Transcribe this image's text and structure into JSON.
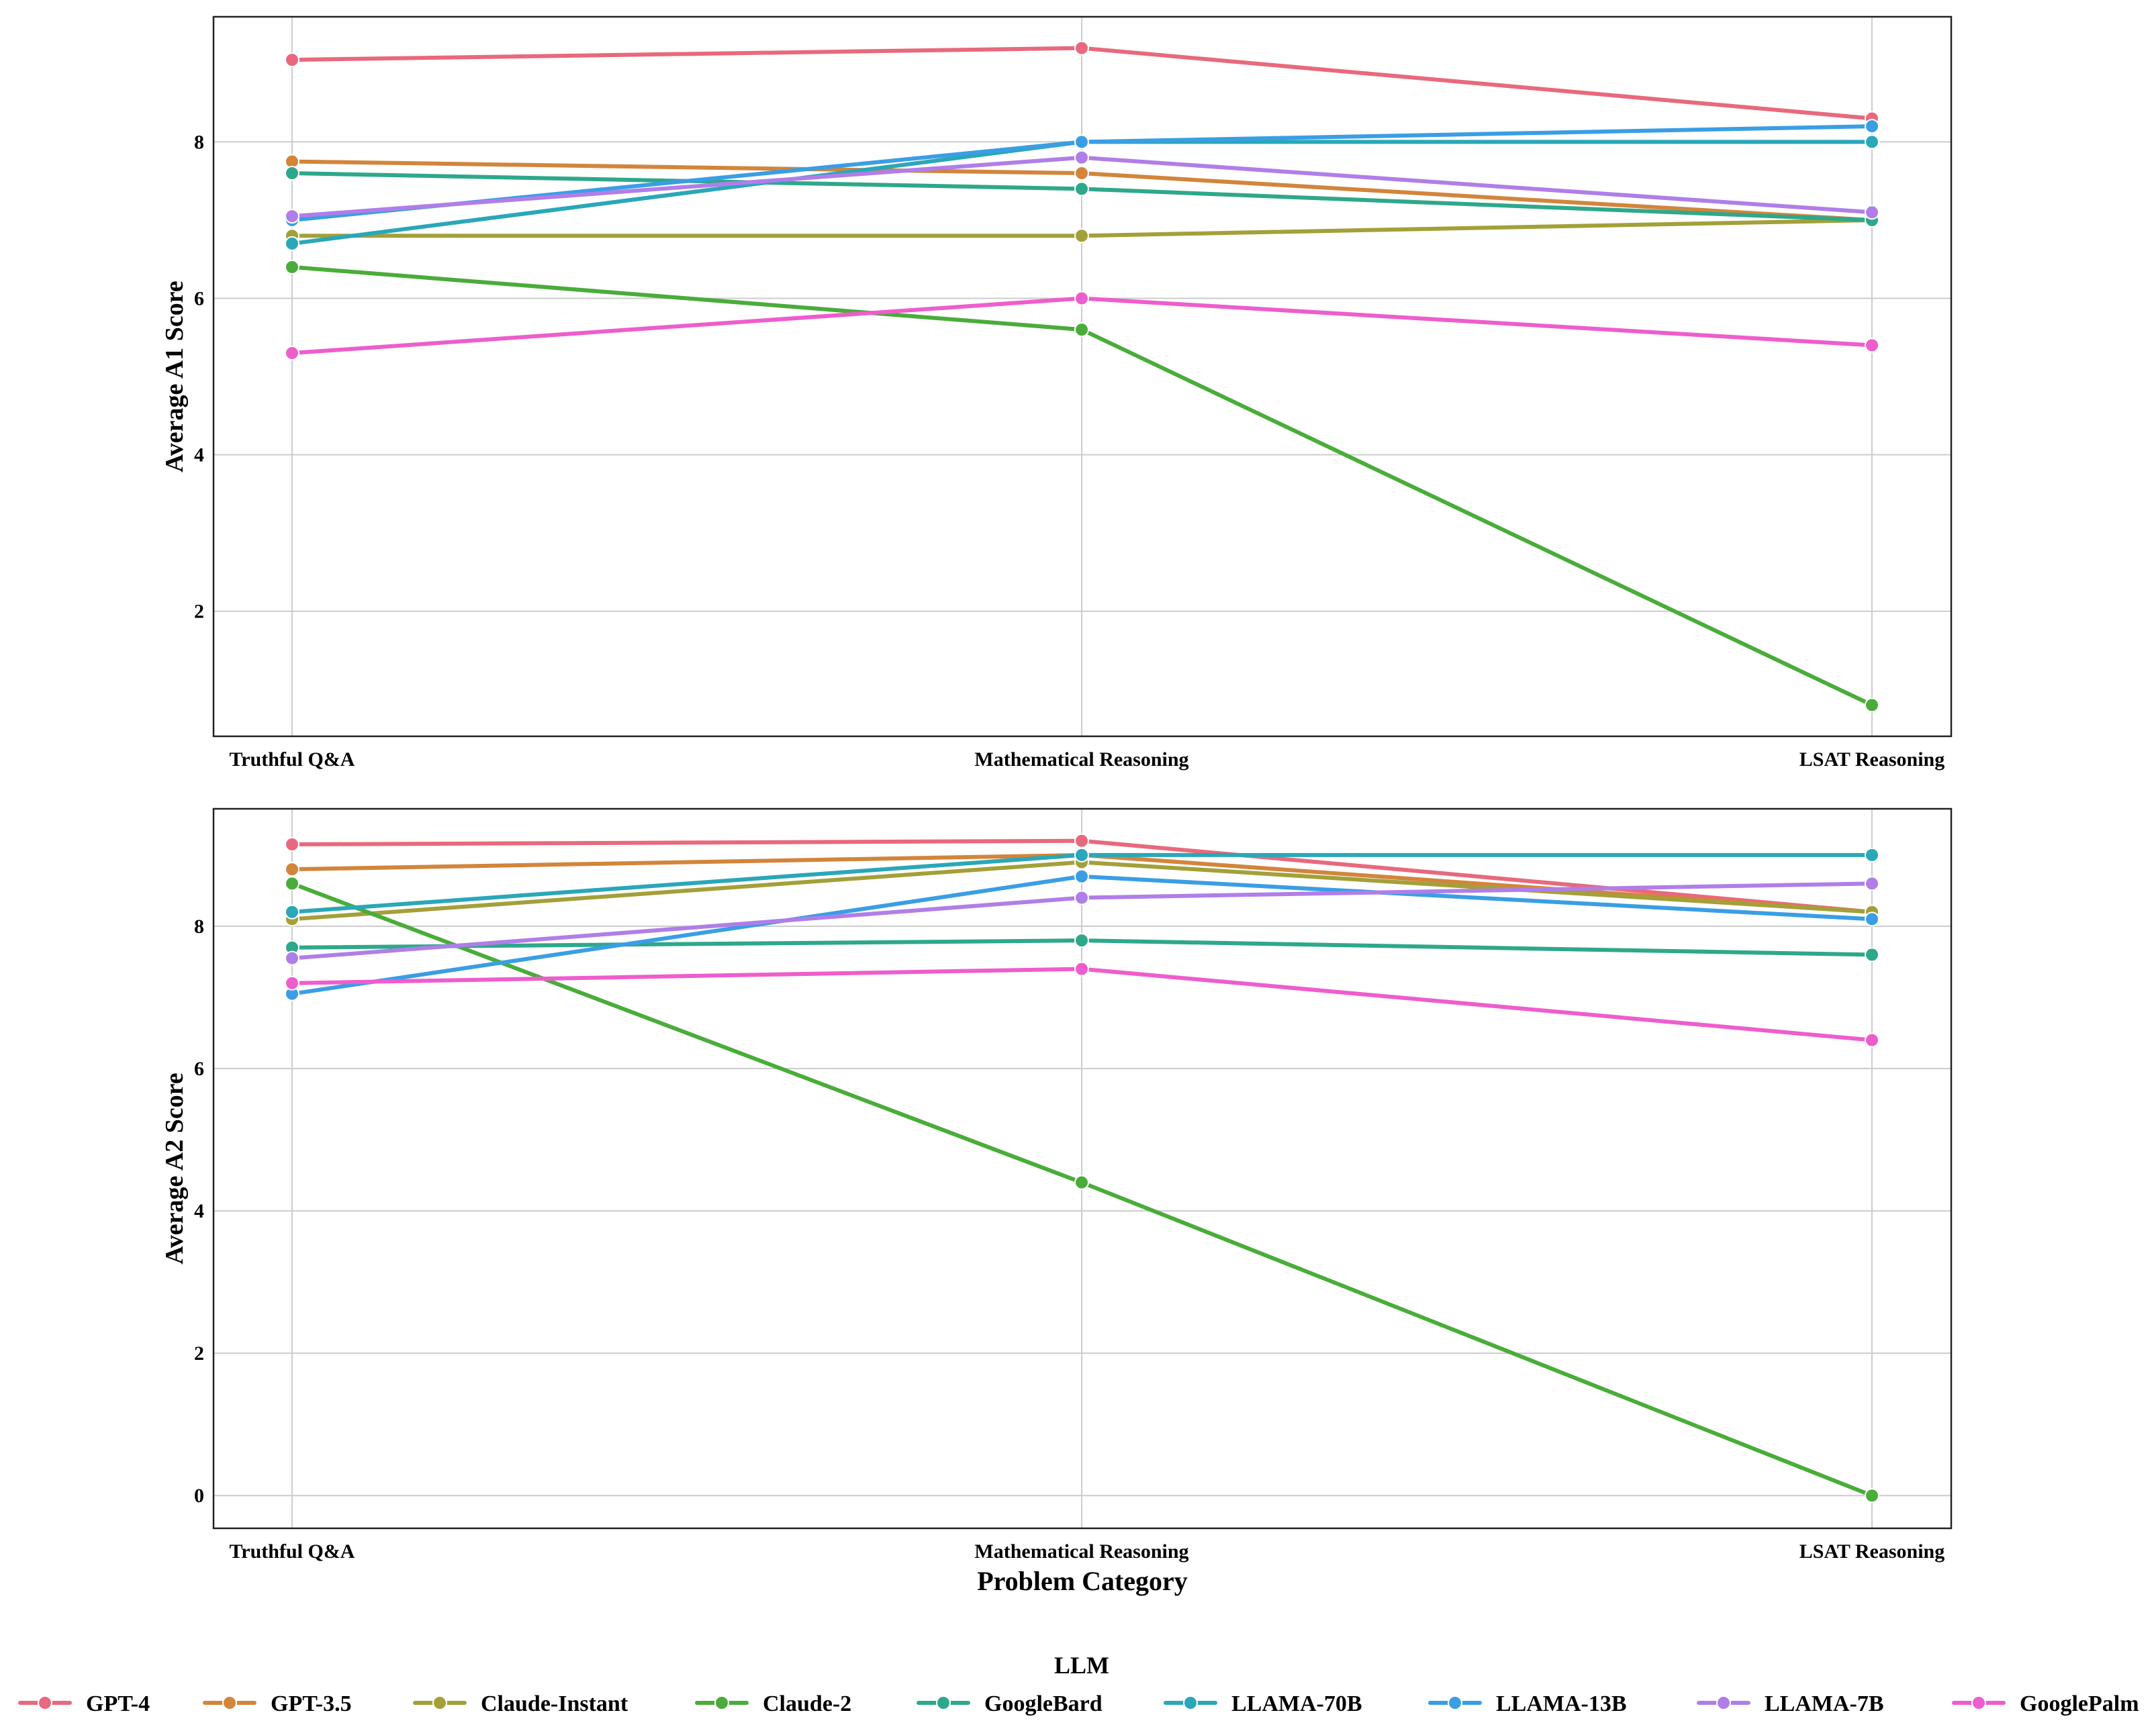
{
  "chart_data": [
    {
      "type": "line",
      "xlabel": "",
      "ylabel": "Average A1 Score",
      "categories": [
        "Truthful Q&A",
        "Mathematical Reasoning",
        "LSAT Reasoning"
      ],
      "ylim": [
        0.4,
        9.6
      ],
      "yticks": [
        2,
        4,
        6,
        8
      ],
      "grid": true,
      "series": [
        {
          "name": "GPT-4",
          "color": "#e8697d",
          "values": [
            9.05,
            9.2,
            8.3
          ]
        },
        {
          "name": "GPT-3.5",
          "color": "#d2853b",
          "values": [
            7.75,
            7.6,
            7.0
          ]
        },
        {
          "name": "Claude-Instant",
          "color": "#a3a03a",
          "values": [
            6.8,
            6.8,
            7.0
          ]
        },
        {
          "name": "Claude-2",
          "color": "#4aac3a",
          "values": [
            6.4,
            5.6,
            0.8
          ]
        },
        {
          "name": "GoogleBard",
          "color": "#2ea88a",
          "values": [
            7.6,
            7.4,
            7.0
          ]
        },
        {
          "name": "LLAMA-70B",
          "color": "#2aa7b8",
          "values": [
            6.7,
            8.0,
            8.0
          ]
        },
        {
          "name": "LLAMA-13B",
          "color": "#3a9ee4",
          "values": [
            7.0,
            8.0,
            8.2
          ]
        },
        {
          "name": "LLAMA-7B",
          "color": "#b07ee8",
          "values": [
            7.05,
            7.8,
            7.1
          ]
        },
        {
          "name": "GooglePalm",
          "color": "#ee5dcd",
          "values": [
            5.3,
            6.0,
            5.4
          ]
        }
      ]
    },
    {
      "type": "line",
      "xlabel": "Problem Category",
      "ylabel": "Average A2 Score",
      "categories": [
        "Truthful Q&A",
        "Mathematical Reasoning",
        "LSAT Reasoning"
      ],
      "ylim": [
        -0.46,
        9.65
      ],
      "yticks": [
        0,
        2,
        4,
        6,
        8
      ],
      "grid": true,
      "series": [
        {
          "name": "GPT-4",
          "color": "#e8697d",
          "values": [
            9.15,
            9.2,
            8.2
          ]
        },
        {
          "name": "GPT-3.5",
          "color": "#d2853b",
          "values": [
            8.8,
            9.0,
            8.2
          ]
        },
        {
          "name": "Claude-Instant",
          "color": "#a3a03a",
          "values": [
            8.1,
            8.9,
            8.2
          ]
        },
        {
          "name": "Claude-2",
          "color": "#4aac3a",
          "values": [
            8.6,
            4.4,
            0.0
          ]
        },
        {
          "name": "GoogleBard",
          "color": "#2ea88a",
          "values": [
            7.7,
            7.8,
            7.6
          ]
        },
        {
          "name": "LLAMA-70B",
          "color": "#2aa7b8",
          "values": [
            8.2,
            9.0,
            9.0
          ]
        },
        {
          "name": "LLAMA-13B",
          "color": "#3a9ee4",
          "values": [
            7.05,
            8.7,
            8.1
          ]
        },
        {
          "name": "LLAMA-7B",
          "color": "#b07ee8",
          "values": [
            7.55,
            8.4,
            8.6
          ]
        },
        {
          "name": "GooglePalm",
          "color": "#ee5dcd",
          "values": [
            7.2,
            7.4,
            6.4
          ]
        }
      ]
    }
  ],
  "legend": {
    "title": "LLM",
    "position": "bottom"
  }
}
